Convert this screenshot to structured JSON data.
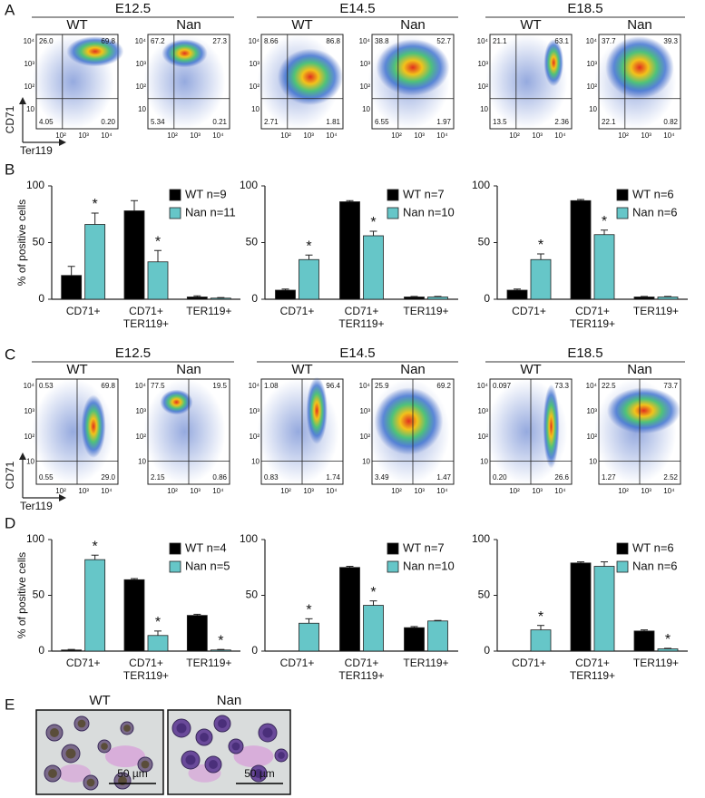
{
  "flow_panels": [
    {
      "letter": "A",
      "y_axis_label": "CD71",
      "x_axis_label": "Ter119",
      "groups": [
        {
          "title": "E12.5",
          "plots": [
            {
              "genotype": "WT",
              "quadrants": [
                "26.0",
                "69.8",
                "4.05",
                "0.20"
              ]
            },
            {
              "genotype": "Nan",
              "quadrants": [
                "67.2",
                "27.3",
                "5.34",
                "0.21"
              ]
            }
          ]
        },
        {
          "title": "E14.5",
          "plots": [
            {
              "genotype": "WT",
              "quadrants": [
                "8.66",
                "86.8",
                "2.71",
                "1.81"
              ]
            },
            {
              "genotype": "Nan",
              "quadrants": [
                "38.8",
                "52.7",
                "6.55",
                "1.97"
              ]
            }
          ]
        },
        {
          "title": "E18.5",
          "plots": [
            {
              "genotype": "WT",
              "quadrants": [
                "21.1",
                "63.1",
                "13.5",
                "2.36"
              ]
            },
            {
              "genotype": "Nan",
              "quadrants": [
                "37.7",
                "39.3",
                "22.1",
                "0.82"
              ]
            }
          ]
        }
      ]
    },
    {
      "letter": "C",
      "y_axis_label": "CD71",
      "x_axis_label": "Ter119",
      "groups": [
        {
          "title": "E12.5",
          "plots": [
            {
              "genotype": "WT",
              "quadrants": [
                "0.53",
                "69.8",
                "0.55",
                "29.0"
              ]
            },
            {
              "genotype": "Nan",
              "quadrants": [
                "77.5",
                "19.5",
                "2.15",
                "0.86"
              ]
            }
          ]
        },
        {
          "title": "E14.5",
          "plots": [
            {
              "genotype": "WT",
              "quadrants": [
                "1.08",
                "96.4",
                "0.83",
                "1.74"
              ]
            },
            {
              "genotype": "Nan",
              "quadrants": [
                "25.9",
                "69.2",
                "3.49",
                "1.47"
              ]
            }
          ]
        },
        {
          "title": "E18.5",
          "plots": [
            {
              "genotype": "WT",
              "quadrants": [
                "0.097",
                "73.3",
                "0.20",
                "26.6"
              ]
            },
            {
              "genotype": "Nan",
              "quadrants": [
                "22.5",
                "73.7",
                "1.27",
                "2.52"
              ]
            }
          ]
        }
      ]
    }
  ],
  "flow_axis": {
    "x_ticks": [
      "10²",
      "10³",
      "10⁴"
    ],
    "y_ticks": [
      "10⁴",
      "10³",
      "10²",
      "10"
    ]
  },
  "bar_panel_letters": [
    "B",
    "D"
  ],
  "chart_data": [
    {
      "type": "bar",
      "y_label": "% of positive cells",
      "categories": [
        "CD71+",
        "CD71+ TER119+",
        "TER119+"
      ],
      "ylim": [
        0,
        100
      ],
      "yticks": [
        0,
        50,
        100
      ],
      "series": [
        {
          "name": "WT n=9",
          "color": "#000000",
          "values": [
            21,
            78,
            2
          ],
          "errors": [
            8,
            9,
            1
          ],
          "significance": [
            null,
            null,
            null
          ]
        },
        {
          "name": "Nan n=11",
          "color": "#66c6c8",
          "values": [
            66,
            33,
            1
          ],
          "errors": [
            10,
            10,
            0.5
          ],
          "significance": [
            "*",
            "*",
            null
          ]
        }
      ]
    },
    {
      "type": "bar",
      "categories": [
        "CD71+",
        "CD71+ TER119+",
        "TER119+"
      ],
      "ylim": [
        0,
        100
      ],
      "yticks": [
        0,
        50,
        100
      ],
      "series": [
        {
          "name": "WT n=7",
          "color": "#000000",
          "values": [
            8,
            86,
            2
          ],
          "errors": [
            1,
            1,
            0.5
          ],
          "significance": [
            null,
            null,
            null
          ]
        },
        {
          "name": "Nan n=10",
          "color": "#66c6c8",
          "values": [
            35,
            56,
            2
          ],
          "errors": [
            4,
            4,
            0.5
          ],
          "significance": [
            "*",
            "*",
            null
          ]
        }
      ]
    },
    {
      "type": "bar",
      "categories": [
        "CD71+",
        "CD71+ TER119+",
        "TER119+"
      ],
      "ylim": [
        0,
        100
      ],
      "yticks": [
        0,
        50,
        100
      ],
      "series": [
        {
          "name": "WT n=6",
          "color": "#000000",
          "values": [
            8,
            87,
            2
          ],
          "errors": [
            1,
            1,
            0.5
          ],
          "significance": [
            null,
            null,
            null
          ]
        },
        {
          "name": "Nan n=6",
          "color": "#66c6c8",
          "values": [
            35,
            57,
            2
          ],
          "errors": [
            5,
            4,
            0.5
          ],
          "significance": [
            "*",
            "*",
            null
          ]
        }
      ]
    },
    {
      "type": "bar",
      "y_label": "% of positive cells",
      "categories": [
        "CD71+",
        "CD71+ TER119+",
        "TER119+"
      ],
      "ylim": [
        0,
        100
      ],
      "yticks": [
        0,
        50,
        100
      ],
      "series": [
        {
          "name": "WT n=4",
          "color": "#000000",
          "values": [
            1,
            64,
            32
          ],
          "errors": [
            0.5,
            1,
            1
          ],
          "significance": [
            null,
            null,
            null
          ]
        },
        {
          "name": "Nan n=5",
          "color": "#66c6c8",
          "values": [
            82,
            14,
            1
          ],
          "errors": [
            4,
            4,
            0.5
          ],
          "significance": [
            "*",
            "*",
            "*"
          ]
        }
      ]
    },
    {
      "type": "bar",
      "categories": [
        "CD71+",
        "CD71+ TER119+",
        "TER119+"
      ],
      "ylim": [
        0,
        100
      ],
      "yticks": [
        0,
        50,
        100
      ],
      "series": [
        {
          "name": "WT n=7",
          "color": "#000000",
          "values": [
            0,
            75,
            21
          ],
          "errors": [
            0,
            1,
            1
          ],
          "significance": [
            null,
            null,
            null
          ]
        },
        {
          "name": "Nan n=10",
          "color": "#66c6c8",
          "values": [
            25,
            41,
            27
          ],
          "errors": [
            4,
            4,
            0.5
          ],
          "significance": [
            "*",
            "*",
            null
          ]
        }
      ]
    },
    {
      "type": "bar",
      "categories": [
        "CD71+",
        "CD71+ TER119+",
        "TER119+"
      ],
      "ylim": [
        0,
        100
      ],
      "yticks": [
        0,
        50,
        100
      ],
      "series": [
        {
          "name": "WT n=6",
          "color": "#000000",
          "values": [
            0,
            79,
            18
          ],
          "errors": [
            0,
            1,
            1
          ],
          "significance": [
            null,
            null,
            null
          ]
        },
        {
          "name": "Nan n=6",
          "color": "#66c6c8",
          "values": [
            19,
            76,
            2
          ],
          "errors": [
            4,
            4,
            0.5
          ],
          "significance": [
            "*",
            null,
            "*"
          ]
        }
      ]
    }
  ],
  "micrographs": {
    "letter": "E",
    "images": [
      {
        "genotype": "WT",
        "scale_bar": "50 µm"
      },
      {
        "genotype": "Nan",
        "scale_bar": "50 µm"
      }
    ]
  }
}
